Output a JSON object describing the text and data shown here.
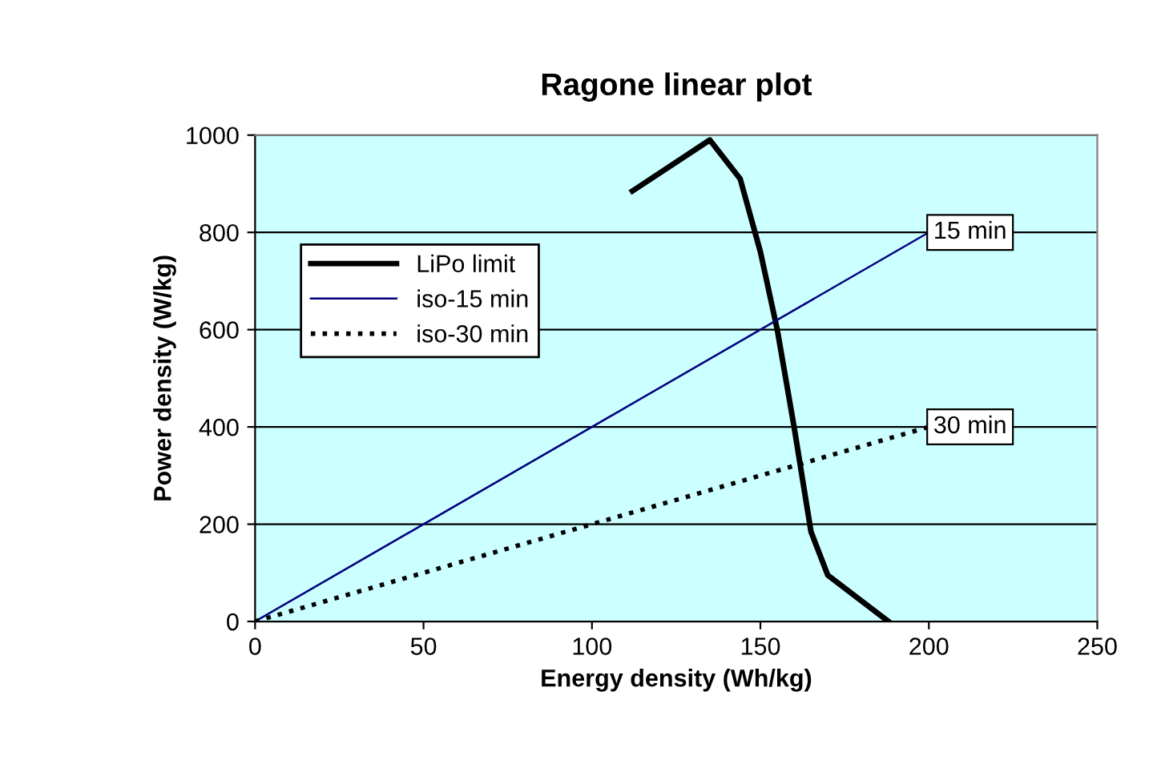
{
  "chart_data": {
    "type": "line",
    "title": "Ragone linear plot",
    "xlabel": "Energy density (Wh/kg)",
    "ylabel": "Power density (W/kg)",
    "xlim": [
      0,
      250
    ],
    "ylim": [
      0,
      1000
    ],
    "xticks": [
      0,
      50,
      100,
      150,
      200,
      250
    ],
    "yticks": [
      0,
      200,
      400,
      600,
      800,
      1000
    ],
    "grid": "y",
    "legend": "top left",
    "series": [
      {
        "name": "LiPo limit",
        "color": "#000000",
        "line_style": "solid",
        "x": [
          112,
          135,
          144,
          150,
          155,
          160,
          165,
          170,
          188
        ],
        "values": [
          885,
          990,
          910,
          760,
          600,
          400,
          185,
          95,
          0
        ]
      },
      {
        "name": "iso-15 min",
        "color": "#000080",
        "line_style": "solid",
        "x": [
          0,
          200
        ],
        "values": [
          0,
          800
        ]
      },
      {
        "name": "iso-30 min",
        "color": "#000000",
        "line_style": "dotted",
        "x": [
          0,
          200
        ],
        "values": [
          0,
          400
        ]
      }
    ],
    "annotations": [
      {
        "text": "15 min",
        "x": 200,
        "y": 800
      },
      {
        "text": "30 min",
        "x": 200,
        "y": 400
      }
    ]
  }
}
